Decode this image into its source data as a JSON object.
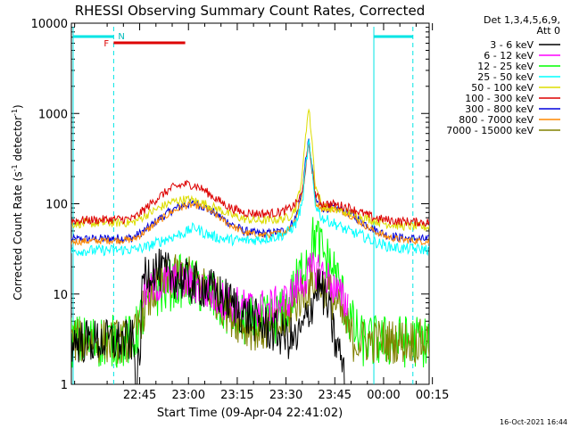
{
  "chart_data": {
    "type": "line",
    "title": "RHESSI Observing Summary Count Rates, Corrected",
    "xlabel": "Start Time (09-Apr-04 22:41:02)",
    "ylabel_main": "Corrected Count Rate (s",
    "ylabel_exp1": "-1",
    "ylabel_mid": " detector",
    "ylabel_exp2": "-1",
    "ylabel_end": ")",
    "yscale": "log",
    "ylim": [
      1,
      10000
    ],
    "xlim_minutes": [
      -17,
      93
    ],
    "x_ticks": [
      {
        "m": 4,
        "label": "22:45"
      },
      {
        "m": 19,
        "label": "23:00"
      },
      {
        "m": 34,
        "label": "23:15"
      },
      {
        "m": 49,
        "label": "23:30"
      },
      {
        "m": 64,
        "label": "23:45"
      },
      {
        "m": 79,
        "label": "00:00"
      },
      {
        "m": 94,
        "label": "00:15"
      }
    ],
    "y_ticks": [
      {
        "v": 1,
        "label": "1"
      },
      {
        "v": 10,
        "label": "10"
      },
      {
        "v": 100,
        "label": "100"
      },
      {
        "v": 1000,
        "label": "1000"
      },
      {
        "v": 10000,
        "label": "10000"
      }
    ],
    "legend_header": [
      "Det 1,3,4,5,6,9,",
      "Att 0"
    ],
    "timestamp": "16-Oct-2021 16:44",
    "flags": {
      "F": "F",
      "N": "N"
    },
    "series": [
      {
        "name": "3 - 6 keV",
        "color": "#000000",
        "points": [
          [
            -17,
            3
          ],
          [
            2,
            3
          ],
          [
            3,
            1
          ],
          [
            4,
            2
          ],
          [
            5,
            15
          ],
          [
            6,
            18
          ],
          [
            8,
            19
          ],
          [
            12,
            17
          ],
          [
            16,
            15
          ],
          [
            20,
            13
          ],
          [
            24,
            12
          ],
          [
            28,
            10
          ],
          [
            32,
            8
          ],
          [
            36,
            6
          ],
          [
            40,
            5
          ],
          [
            44,
            4
          ],
          [
            48,
            3.5
          ],
          [
            52,
            3
          ],
          [
            54,
            4
          ],
          [
            57,
            8
          ],
          [
            59,
            13
          ],
          [
            61,
            9
          ],
          [
            63,
            5
          ],
          [
            64,
            3
          ],
          [
            66,
            2
          ],
          [
            67,
            1
          ]
        ]
      },
      {
        "name": "6 - 12 keV",
        "color": "#ff00ff",
        "points": [
          [
            5,
            10
          ],
          [
            10,
            13
          ],
          [
            16,
            14
          ],
          [
            20,
            13
          ],
          [
            24,
            11
          ],
          [
            28,
            9
          ],
          [
            32,
            8
          ],
          [
            36,
            7
          ],
          [
            40,
            7
          ],
          [
            44,
            7
          ],
          [
            48,
            8
          ],
          [
            50,
            9
          ],
          [
            54,
            14
          ],
          [
            57,
            18
          ],
          [
            59,
            19
          ],
          [
            61,
            16
          ],
          [
            63,
            13
          ],
          [
            65,
            10
          ],
          [
            67,
            8
          ],
          [
            68,
            8
          ]
        ]
      },
      {
        "name": "12 - 25 keV",
        "color": "#00ff00",
        "points": [
          [
            -17,
            3
          ],
          [
            2,
            3
          ],
          [
            5,
            6
          ],
          [
            8,
            10
          ],
          [
            12,
            12
          ],
          [
            16,
            14
          ],
          [
            20,
            13
          ],
          [
            24,
            11
          ],
          [
            28,
            8
          ],
          [
            32,
            6
          ],
          [
            36,
            5
          ],
          [
            40,
            5
          ],
          [
            44,
            5
          ],
          [
            48,
            6
          ],
          [
            50,
            8
          ],
          [
            53,
            15
          ],
          [
            56,
            30
          ],
          [
            58,
            45
          ],
          [
            60,
            30
          ],
          [
            62,
            22
          ],
          [
            64,
            18
          ],
          [
            66,
            10
          ],
          [
            68,
            6
          ],
          [
            70,
            4
          ],
          [
            72,
            3
          ],
          [
            93,
            3
          ]
        ]
      },
      {
        "name": "25 - 50 keV",
        "color": "#00ffff",
        "points": [
          [
            -17,
            30
          ],
          [
            2,
            31
          ],
          [
            6,
            33
          ],
          [
            10,
            38
          ],
          [
            14,
            43
          ],
          [
            18,
            48
          ],
          [
            21,
            55
          ],
          [
            24,
            47
          ],
          [
            28,
            42
          ],
          [
            32,
            40
          ],
          [
            36,
            39
          ],
          [
            40,
            40
          ],
          [
            44,
            42
          ],
          [
            48,
            45
          ],
          [
            50,
            50
          ],
          [
            52,
            60
          ],
          [
            54,
            100
          ],
          [
            55,
            250
          ],
          [
            56,
            480
          ],
          [
            57,
            230
          ],
          [
            58,
            100
          ],
          [
            60,
            70
          ],
          [
            64,
            60
          ],
          [
            68,
            50
          ],
          [
            72,
            45
          ],
          [
            76,
            38
          ],
          [
            80,
            34
          ],
          [
            84,
            32
          ],
          [
            93,
            31
          ]
        ]
      },
      {
        "name": "50 - 100 keV",
        "color": "#dddd00",
        "points": [
          [
            -17,
            60
          ],
          [
            2,
            62
          ],
          [
            6,
            75
          ],
          [
            10,
            90
          ],
          [
            14,
            105
          ],
          [
            18,
            112
          ],
          [
            21,
            108
          ],
          [
            24,
            100
          ],
          [
            28,
            88
          ],
          [
            32,
            75
          ],
          [
            36,
            68
          ],
          [
            40,
            65
          ],
          [
            44,
            66
          ],
          [
            48,
            68
          ],
          [
            50,
            72
          ],
          [
            52,
            90
          ],
          [
            54,
            200
          ],
          [
            55,
            600
          ],
          [
            56,
            1150
          ],
          [
            57,
            500
          ],
          [
            58,
            160
          ],
          [
            60,
            95
          ],
          [
            64,
            85
          ],
          [
            68,
            80
          ],
          [
            72,
            72
          ],
          [
            76,
            65
          ],
          [
            80,
            60
          ],
          [
            84,
            57
          ],
          [
            93,
            55
          ]
        ]
      },
      {
        "name": "100 - 300 keV",
        "color": "#dd0000",
        "points": [
          [
            -17,
            65
          ],
          [
            2,
            68
          ],
          [
            6,
            90
          ],
          [
            10,
            120
          ],
          [
            14,
            150
          ],
          [
            18,
            165
          ],
          [
            21,
            160
          ],
          [
            24,
            140
          ],
          [
            28,
            110
          ],
          [
            32,
            90
          ],
          [
            36,
            80
          ],
          [
            40,
            78
          ],
          [
            44,
            78
          ],
          [
            48,
            82
          ],
          [
            50,
            88
          ],
          [
            52,
            100
          ],
          [
            54,
            130
          ],
          [
            55,
            250
          ],
          [
            56,
            460
          ],
          [
            57,
            240
          ],
          [
            58,
            130
          ],
          [
            60,
            100
          ],
          [
            64,
            98
          ],
          [
            68,
            92
          ],
          [
            72,
            80
          ],
          [
            76,
            70
          ],
          [
            80,
            66
          ],
          [
            84,
            64
          ],
          [
            93,
            62
          ]
        ]
      },
      {
        "name": "300 - 800 keV",
        "color": "#0000dd",
        "points": [
          [
            -17,
            40
          ],
          [
            2,
            42
          ],
          [
            6,
            52
          ],
          [
            10,
            68
          ],
          [
            14,
            85
          ],
          [
            18,
            98
          ],
          [
            21,
            100
          ],
          [
            24,
            92
          ],
          [
            28,
            75
          ],
          [
            32,
            60
          ],
          [
            36,
            50
          ],
          [
            40,
            47
          ],
          [
            44,
            47
          ],
          [
            48,
            50
          ],
          [
            50,
            55
          ],
          [
            52,
            70
          ],
          [
            54,
            140
          ],
          [
            55,
            300
          ],
          [
            56,
            490
          ],
          [
            57,
            260
          ],
          [
            58,
            110
          ],
          [
            60,
            90
          ],
          [
            64,
            90
          ],
          [
            68,
            80
          ],
          [
            72,
            65
          ],
          [
            76,
            52
          ],
          [
            80,
            45
          ],
          [
            84,
            42
          ],
          [
            93,
            40
          ]
        ]
      },
      {
        "name": "800 - 7000 keV",
        "color": "#ff8800",
        "points": [
          [
            -17,
            38
          ],
          [
            2,
            40
          ],
          [
            6,
            50
          ],
          [
            10,
            65
          ],
          [
            14,
            82
          ],
          [
            18,
            95
          ],
          [
            21,
            97
          ],
          [
            24,
            90
          ],
          [
            28,
            72
          ],
          [
            32,
            58
          ],
          [
            36,
            48
          ],
          [
            40,
            45
          ],
          [
            44,
            45
          ],
          [
            48,
            48
          ],
          [
            50,
            53
          ],
          [
            52,
            68
          ],
          [
            54,
            135
          ],
          [
            55,
            280
          ],
          [
            56,
            470
          ],
          [
            57,
            250
          ],
          [
            58,
            105
          ],
          [
            60,
            88
          ],
          [
            64,
            88
          ],
          [
            68,
            78
          ],
          [
            72,
            62
          ],
          [
            76,
            50
          ],
          [
            80,
            43
          ],
          [
            84,
            40
          ],
          [
            93,
            38
          ]
        ]
      },
      {
        "name": "7000 - 15000 keV",
        "color": "#808000",
        "points": [
          [
            -17,
            3
          ],
          [
            2,
            3
          ],
          [
            4,
            5
          ],
          [
            6,
            8
          ],
          [
            9,
            11
          ],
          [
            12,
            14
          ],
          [
            16,
            16
          ],
          [
            20,
            15
          ],
          [
            24,
            12
          ],
          [
            28,
            9
          ],
          [
            32,
            6
          ],
          [
            36,
            4.5
          ],
          [
            40,
            4
          ],
          [
            44,
            4
          ],
          [
            48,
            4.5
          ],
          [
            50,
            6
          ],
          [
            53,
            9
          ],
          [
            56,
            12
          ],
          [
            58,
            14
          ],
          [
            60,
            13
          ],
          [
            62,
            11
          ],
          [
            64,
            8
          ],
          [
            66,
            6
          ],
          [
            68,
            4
          ],
          [
            70,
            3
          ],
          [
            93,
            3
          ]
        ]
      }
    ]
  }
}
